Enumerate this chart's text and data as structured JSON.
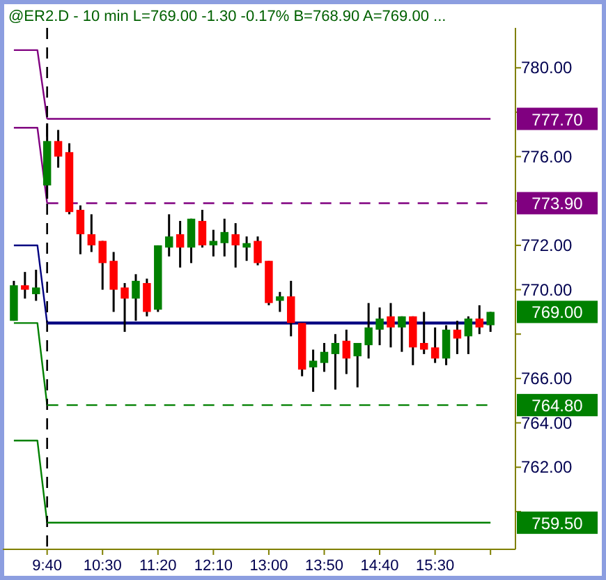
{
  "chart_data": {
    "type": "candlestick",
    "title": "@ER2.D - 10 min  L=769.00  -1.30  -0.17%  B=768.90  A=769.00  ...",
    "x": [
      9.1667,
      9.3333,
      9.5,
      9.6667,
      9.8333,
      10,
      10.1667,
      10.3333,
      10.5,
      10.6667,
      10.8333,
      11,
      11.1667,
      11.3333,
      11.5,
      11.6667,
      11.8333,
      12,
      12.1667,
      12.3333,
      12.5,
      12.6667,
      12.8333,
      13,
      13.1667,
      13.3333,
      13.5,
      13.6667,
      13.8333,
      14,
      14.1667,
      14.3333,
      14.5,
      14.6667,
      14.8333,
      15,
      15.1667,
      15.3333,
      15.5,
      15.6667,
      15.8333,
      16,
      16.1667,
      16.3333
    ],
    "ohlc": [
      [
        768.6,
        770.4,
        768.6,
        770.2
      ],
      [
        770.2,
        770.8,
        769.6,
        770.0
      ],
      [
        769.8,
        770.9,
        769.5,
        770.1
      ],
      [
        774.7,
        777.5,
        774.1,
        776.7
      ],
      [
        776.7,
        777.2,
        775.5,
        776.0
      ],
      [
        776.2,
        776.6,
        773.4,
        773.5
      ],
      [
        773.6,
        773.8,
        771.6,
        772.5
      ],
      [
        772.5,
        773.4,
        771.7,
        772.0
      ],
      [
        772.2,
        772.2,
        770.0,
        771.2
      ],
      [
        771.3,
        771.7,
        769.0,
        770.0
      ],
      [
        770.1,
        770.3,
        768.1,
        769.6
      ],
      [
        769.6,
        770.7,
        768.6,
        770.4
      ],
      [
        770.3,
        770.5,
        768.8,
        769.0
      ],
      [
        769.1,
        772.0,
        769.0,
        772.0
      ],
      [
        771.9,
        773.4,
        771.5,
        772.4
      ],
      [
        772.5,
        773.1,
        771.0,
        771.9
      ],
      [
        771.9,
        773.2,
        771.2,
        773.2
      ],
      [
        773.1,
        773.6,
        771.9,
        772.0
      ],
      [
        772.0,
        772.7,
        771.5,
        772.2
      ],
      [
        772.1,
        773.2,
        771.5,
        772.6
      ],
      [
        772.5,
        773.0,
        771.0,
        772.0
      ],
      [
        771.9,
        772.4,
        771.3,
        772.1
      ],
      [
        772.2,
        772.4,
        771.1,
        771.2
      ],
      [
        771.3,
        771.3,
        769.3,
        769.4
      ],
      [
        769.5,
        769.9,
        769.0,
        769.7
      ],
      [
        769.7,
        770.4,
        767.9,
        768.5
      ],
      [
        768.5,
        768.5,
        766.1,
        766.4
      ],
      [
        766.5,
        767.3,
        765.4,
        766.8
      ],
      [
        766.7,
        767.6,
        766.3,
        767.2
      ],
      [
        767.1,
        768.0,
        765.5,
        767.6
      ],
      [
        767.7,
        768.2,
        766.2,
        766.9
      ],
      [
        767.0,
        767.6,
        765.6,
        767.6
      ],
      [
        767.5,
        769.4,
        766.9,
        768.3
      ],
      [
        768.2,
        769.2,
        767.5,
        768.7
      ],
      [
        768.8,
        769.4,
        767.4,
        768.3
      ],
      [
        768.3,
        768.8,
        767.2,
        768.8
      ],
      [
        768.8,
        768.8,
        766.6,
        767.4
      ],
      [
        767.6,
        769.0,
        767.1,
        767.3
      ],
      [
        767.4,
        768.3,
        766.7,
        766.9
      ],
      [
        766.9,
        768.4,
        766.6,
        768.2
      ],
      [
        768.2,
        768.6,
        767.1,
        767.8
      ],
      [
        767.9,
        768.8,
        767.1,
        768.7
      ],
      [
        768.7,
        769.3,
        768.0,
        768.3
      ],
      [
        768.4,
        769.0,
        768.1,
        769.0
      ]
    ],
    "colors": [
      "#008000",
      "#ff0000",
      "#008000",
      "#008000",
      "#ff0000",
      "#ff0000",
      "#ff0000",
      "#ff0000",
      "#ff0000",
      "#ff0000",
      "#ff0000",
      "#008000",
      "#ff0000",
      "#008000",
      "#008000",
      "#ff0000",
      "#008000",
      "#ff0000",
      "#008000",
      "#008000",
      "#ff0000",
      "#008000",
      "#ff0000",
      "#ff0000",
      "#008000",
      "#ff0000",
      "#ff0000",
      "#008000",
      "#008000",
      "#008000",
      "#ff0000",
      "#008000",
      "#008000",
      "#008000",
      "#ff0000",
      "#008000",
      "#ff0000",
      "#ff0000",
      "#ff0000",
      "#008000",
      "#ff0000",
      "#008000",
      "#ff0000",
      "#008000"
    ],
    "series": [
      {
        "type": "line",
        "color": "#800080",
        "x": [
          9.1667,
          9.5208,
          9.6667
        ],
        "values": [
          780.8,
          780.8,
          777.7
        ]
      },
      {
        "type": "line",
        "color": "#800080",
        "x": [
          9.1667,
          9.5208,
          9.6667
        ],
        "values": [
          777.3,
          777.3,
          773.9
        ]
      },
      {
        "type": "line",
        "color": "#000080",
        "x": [
          9.1667,
          9.5208,
          9.6667
        ],
        "values": [
          772.0,
          772.0,
          768.5
        ]
      },
      {
        "type": "line",
        "color": "#008000",
        "x": [
          9.1667,
          9.5208,
          9.6667
        ],
        "values": [
          768.5,
          768.5,
          764.8
        ]
      },
      {
        "type": "line",
        "color": "#008000",
        "x": [
          9.1667,
          9.5208,
          9.6667
        ],
        "values": [
          763.2,
          763.2,
          759.5
        ]
      }
    ],
    "ref_lines": [
      {
        "axis": "x",
        "value": 9.6667,
        "label": null,
        "color": "#000000",
        "line_style": "dashed"
      },
      {
        "axis": "y",
        "value": 777.7,
        "label": "777.70",
        "color": "#800080",
        "line_style": "solid"
      },
      {
        "axis": "y",
        "value": 773.9,
        "label": "773.90",
        "color": "#800080",
        "line_style": "dashed"
      },
      {
        "axis": "y",
        "value": 768.5,
        "label": null,
        "color": "#000080",
        "line_style": "solid"
      },
      {
        "axis": "y",
        "value": 764.8,
        "label": "764.80",
        "color": "#008000",
        "line_style": "dashed"
      },
      {
        "axis": "y",
        "value": 759.5,
        "label": "759.50",
        "color": "#008000",
        "line_style": "solid"
      }
    ],
    "annotations": [
      "769.00"
    ],
    "xlim": [
      9,
      16.7083
    ],
    "xticks": [
      {
        "value": 9.6667,
        "label": "9:40"
      },
      {
        "value": 10.5,
        "label": "10:30"
      },
      {
        "value": 11.3333,
        "label": "11:20"
      },
      {
        "value": 12.1667,
        "label": "12:10"
      },
      {
        "value": 13,
        "label": "13:00"
      },
      {
        "value": 13.8333,
        "label": "13:50"
      },
      {
        "value": 14.6667,
        "label": "14:40"
      },
      {
        "value": 15.5,
        "label": "15:30"
      },
      {
        "value": 16.3333,
        "label": null
      }
    ],
    "ylim": [
      758.3,
      781.8
    ],
    "yticks": [
      {
        "value": 760,
        "label": null
      },
      {
        "value": 762,
        "label": "762.00"
      },
      {
        "value": 764,
        "label": "764.00"
      },
      {
        "value": 766,
        "label": "766.00"
      },
      {
        "value": 768,
        "label": null
      },
      {
        "value": 770,
        "label": "770.00"
      },
      {
        "value": 772,
        "label": "772.00"
      },
      {
        "value": 774,
        "label": null
      },
      {
        "value": 776,
        "label": "776.00"
      },
      {
        "value": 778,
        "label": null
      },
      {
        "value": 780,
        "label": "780.00"
      }
    ]
  }
}
